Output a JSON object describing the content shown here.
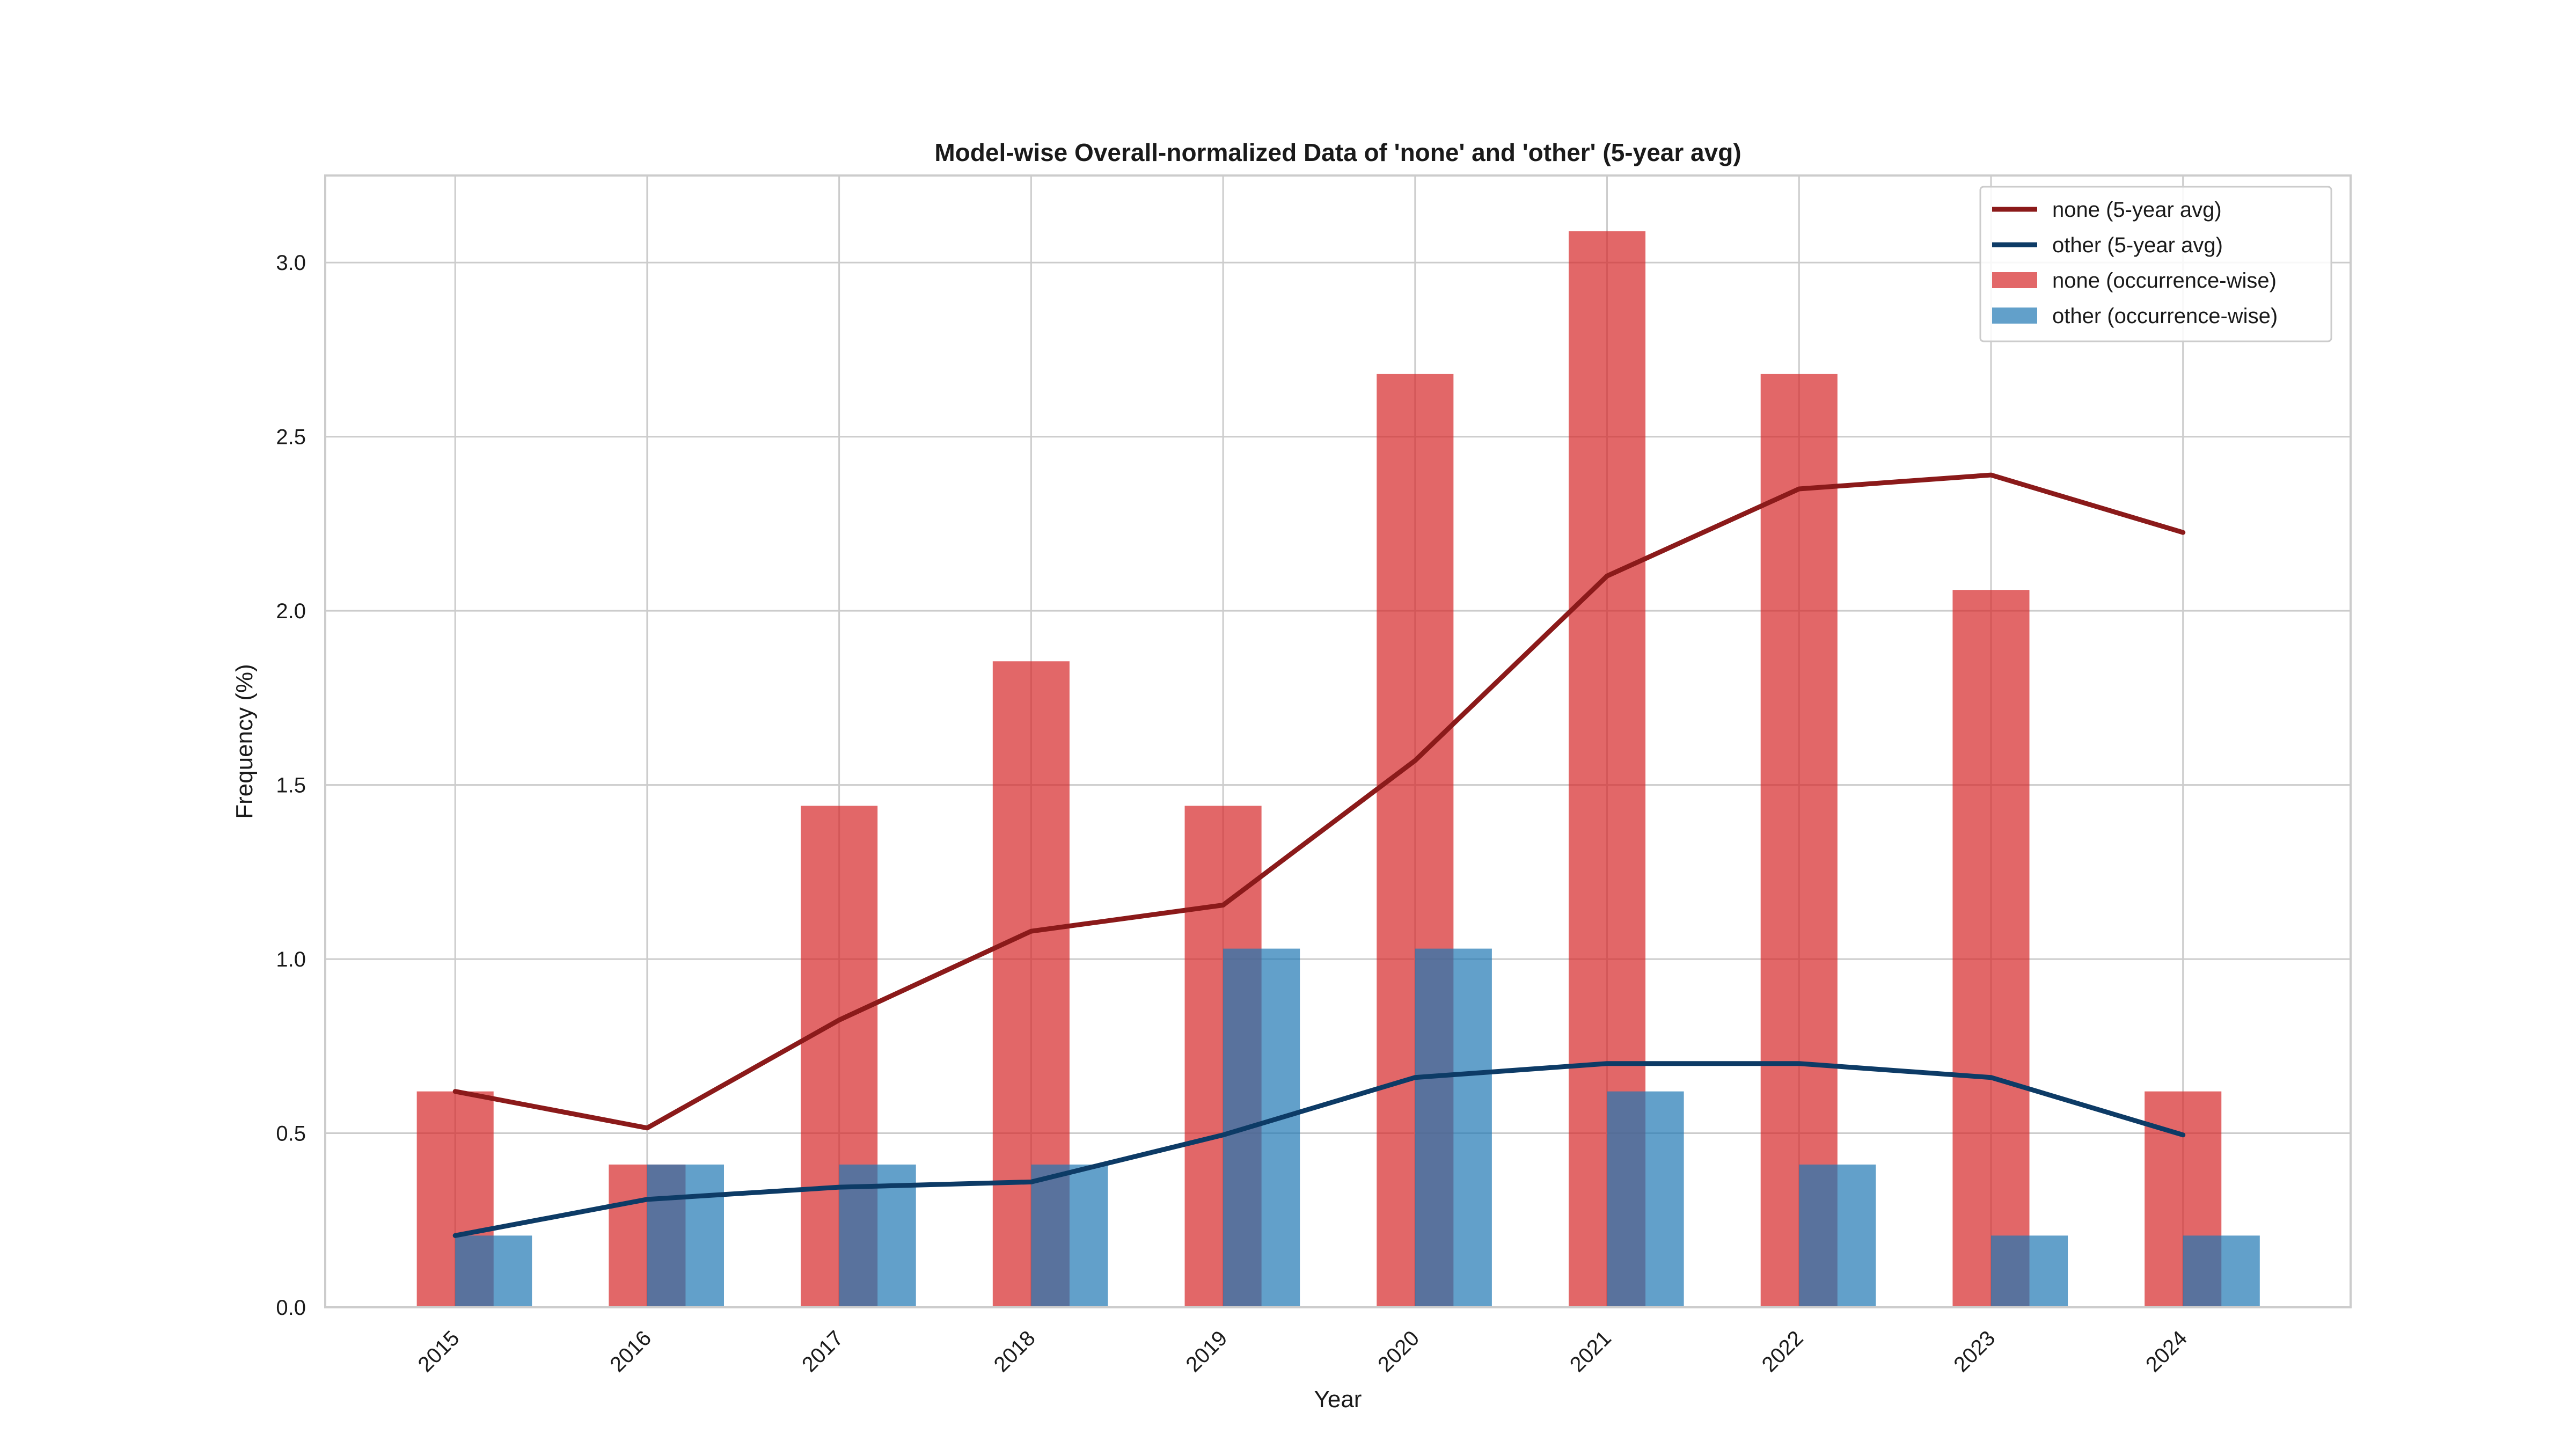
{
  "chart_data": {
    "type": "bar",
    "title": "Model-wise Overall-normalized Data of 'none' and 'other' (5-year avg)",
    "xlabel": "Year",
    "ylabel": "Frequency (%)",
    "categories": [
      "2015",
      "2016",
      "2017",
      "2018",
      "2019",
      "2020",
      "2021",
      "2022",
      "2023",
      "2024"
    ],
    "ylim": [
      0,
      3.25
    ],
    "yticks": [
      "0.0",
      "0.5",
      "1.0",
      "1.5",
      "2.0",
      "2.5",
      "3.0"
    ],
    "grid": true,
    "legend_position": "top-right",
    "series": [
      {
        "name": "none (5-year avg)",
        "kind": "line",
        "color": "#8b1a1a",
        "values": [
          0.62,
          0.515,
          0.825,
          1.08,
          1.155,
          1.57,
          2.1,
          2.35,
          2.39,
          2.225
        ]
      },
      {
        "name": "other (5-year avg)",
        "kind": "line",
        "color": "#0d3b66",
        "values": [
          0.206,
          0.31,
          0.345,
          0.36,
          0.495,
          0.66,
          0.7,
          0.7,
          0.66,
          0.495
        ]
      },
      {
        "name": "none (occurrence-wise)",
        "kind": "bar",
        "color": "#d62728",
        "values": [
          0.62,
          0.41,
          1.44,
          1.855,
          1.44,
          2.68,
          3.09,
          2.68,
          2.06,
          0.62
        ]
      },
      {
        "name": "other (occurrence-wise)",
        "kind": "bar",
        "color": "#1f77b4",
        "values": [
          0.206,
          0.41,
          0.41,
          0.41,
          1.03,
          1.03,
          0.62,
          0.41,
          0.206,
          0.206
        ]
      }
    ]
  }
}
